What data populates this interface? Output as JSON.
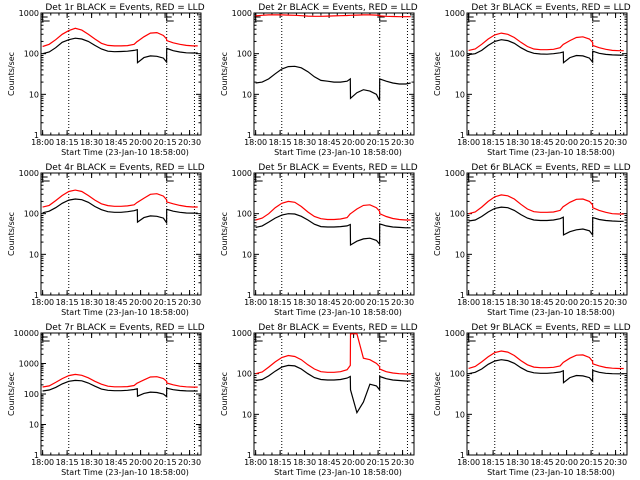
{
  "chart_data": {
    "type": "line",
    "layout": "3x3 grid",
    "common": {
      "xlabel": "Start Time (23-Jan-10 18:58:00)",
      "ylabel": "Counts/sec",
      "x_tick_labels": [
        "18:00",
        "18:15",
        "18:30",
        "18:45",
        "20:00",
        "20:15",
        "20:30"
      ],
      "x_tick_minutes": [
        0,
        15,
        30,
        45,
        60,
        75,
        90
      ],
      "x_range_minutes": [
        -1,
        97
      ],
      "y_scale": "log",
      "dotted_vlines_minutes": [
        16,
        76,
        93
      ],
      "e_markers_minutes": [
        0,
        76
      ],
      "series_colors": {
        "events": "#000000",
        "lld": "#ff0000"
      },
      "x_minutes": [
        0,
        4,
        8,
        12,
        16,
        20,
        24,
        28,
        32,
        36,
        40,
        44,
        48,
        52,
        56,
        58,
        58.1,
        62,
        66,
        70,
        74,
        75.9,
        76,
        80,
        84,
        88,
        92,
        95
      ]
    },
    "panels": [
      {
        "title": "Det 1r BLACK = Events, RED = LLD",
        "ylim": [
          1,
          1000
        ],
        "y_tick_labels": [
          "1",
          "10",
          "100",
          "1000"
        ],
        "series": [
          {
            "name": "Events",
            "color": "#000000",
            "values": [
              100,
              110,
              140,
              190,
              220,
              240,
              230,
              200,
              160,
              130,
              115,
              112,
              113,
              115,
              120,
              125,
              60,
              80,
              88,
              86,
              78,
              62,
              135,
              118,
              110,
              105,
              104,
              104
            ]
          },
          {
            "name": "LLD",
            "color": "#ff0000",
            "values": [
              150,
              170,
              220,
              300,
              370,
              420,
              380,
              300,
              230,
              180,
              160,
              155,
              155,
              158,
              170,
              200,
              200,
              260,
              320,
              330,
              280,
              230,
              210,
              185,
              170,
              160,
              155,
              155
            ]
          }
        ]
      },
      {
        "title": "Det 2r BLACK = Events, RED = LLD",
        "ylim": [
          1,
          1000
        ],
        "y_tick_labels": [
          "1",
          "10",
          "100",
          "1000"
        ],
        "series": [
          {
            "name": "Events",
            "color": "#000000",
            "values": [
              19,
              20,
              24,
              32,
              42,
              48,
              49,
              45,
              36,
              27,
              22,
              21,
              20,
              20,
              21,
              24,
              8,
              11,
              13,
              12,
              10,
              7,
              24,
              21,
              19,
              18,
              18,
              19
            ]
          },
          {
            "name": "LLD",
            "color": "#ff0000",
            "values": [
              850,
              880,
              900,
              900,
              900,
              890,
              880,
              860,
              840,
              830,
              830,
              840,
              850,
              860,
              870,
              880,
              880,
              890,
              900,
              900,
              890,
              870,
              850,
              830,
              820,
              810,
              810,
              810
            ]
          }
        ]
      },
      {
        "title": "Det 3r BLACK = Events, RED = LLD",
        "ylim": [
          1,
          1000
        ],
        "y_tick_labels": [
          "1",
          "10",
          "100",
          "1000"
        ],
        "series": [
          {
            "name": "Events",
            "color": "#000000",
            "values": [
              95,
              100,
              120,
              160,
              200,
              220,
              210,
              180,
              140,
              115,
              102,
              98,
              97,
              100,
              105,
              110,
              60,
              80,
              90,
              88,
              78,
              62,
              115,
              102,
              96,
              93,
              92,
              92
            ]
          },
          {
            "name": "LLD",
            "color": "#ff0000",
            "values": [
              120,
              130,
              170,
              230,
              290,
              320,
              300,
              250,
              190,
              150,
              130,
              125,
              125,
              128,
              140,
              170,
              170,
              210,
              250,
              260,
              230,
              190,
              160,
              140,
              128,
              120,
              118,
              118
            ]
          }
        ]
      },
      {
        "title": "Det 4r BLACK = Events, RED = LLD",
        "ylim": [
          1,
          1000
        ],
        "y_tick_labels": [
          "1",
          "10",
          "100",
          "1000"
        ],
        "series": [
          {
            "name": "Events",
            "color": "#000000",
            "values": [
              105,
              115,
              140,
              180,
              215,
              230,
              220,
              190,
              150,
              125,
              112,
              108,
              108,
              112,
              118,
              125,
              62,
              80,
              88,
              86,
              78,
              60,
              128,
              115,
              108,
              104,
              103,
              103
            ]
          },
          {
            "name": "LLD",
            "color": "#ff0000",
            "values": [
              145,
              160,
              210,
              280,
              350,
              380,
              350,
              280,
              215,
              175,
              158,
              152,
              152,
              155,
              165,
              190,
              190,
              240,
              300,
              310,
              270,
              220,
              195,
              175,
              160,
              150,
              146,
              146
            ]
          }
        ]
      },
      {
        "title": "Det 5r BLACK = Events, RED = LLD",
        "ylim": [
          1,
          1000
        ],
        "y_tick_labels": [
          "1",
          "10",
          "100",
          "1000"
        ],
        "series": [
          {
            "name": "Events",
            "color": "#000000",
            "values": [
              46,
              50,
              62,
              78,
              92,
              100,
              98,
              86,
              70,
              55,
              48,
              47,
              47,
              48,
              50,
              54,
              17,
              21,
              24,
              25,
              22,
              18,
              56,
              50,
              47,
              46,
              45,
              45
            ]
          },
          {
            "name": "LLD",
            "color": "#ff0000",
            "values": [
              70,
              78,
              100,
              140,
              180,
              200,
              190,
              150,
              110,
              85,
              75,
              72,
              72,
              74,
              80,
              100,
              100,
              130,
              160,
              165,
              140,
              115,
              100,
              85,
              76,
              72,
              70,
              70
            ]
          }
        ]
      },
      {
        "title": "Det 6r BLACK = Events, RED = LLD",
        "ylim": [
          1,
          1000
        ],
        "y_tick_labels": [
          "1",
          "10",
          "100",
          "1000"
        ],
        "series": [
          {
            "name": "Events",
            "color": "#000000",
            "values": [
              66,
              70,
              85,
              110,
              135,
              145,
              140,
              120,
              95,
              78,
              70,
              68,
              68,
              70,
              75,
              82,
              30,
              36,
              40,
              42,
              38,
              30,
              80,
              72,
              68,
              66,
              65,
              65
            ]
          },
          {
            "name": "LLD",
            "color": "#ff0000",
            "values": [
              100,
              110,
              145,
              200,
              260,
              290,
              275,
              230,
              170,
              130,
              112,
              108,
              108,
              110,
              120,
              150,
              150,
              190,
              225,
              230,
              200,
              165,
              140,
              120,
              108,
              100,
              98,
              98
            ]
          }
        ]
      },
      {
        "title": "Det 7r BLACK = Events, RED = LLD",
        "ylim": [
          1,
          10000
        ],
        "y_tick_labels": [
          "1",
          "10",
          "100",
          "1000",
          "10000"
        ],
        "series": [
          {
            "name": "Events",
            "color": "#000000",
            "values": [
              125,
              135,
              165,
              215,
              260,
              280,
              270,
              230,
              180,
              145,
              132,
              128,
              128,
              132,
              140,
              148,
              85,
              105,
              115,
              112,
              100,
              82,
              155,
              138,
              130,
              126,
              125,
              125
            ]
          },
          {
            "name": "LLD",
            "color": "#ff0000",
            "values": [
              170,
              185,
              240,
              320,
              400,
              440,
              410,
              340,
              260,
              210,
              180,
              172,
              172,
              175,
              190,
              230,
              230,
              290,
              360,
              370,
              320,
              260,
              230,
              200,
              180,
              172,
              168,
              168
            ]
          }
        ]
      },
      {
        "title": "Det 8r BLACK = Events, RED = LLD",
        "ylim": [
          1,
          1000
        ],
        "y_tick_labels": [
          "1",
          "10",
          "100",
          "1000"
        ],
        "series": [
          {
            "name": "Events",
            "color": "#000000",
            "values": [
              68,
              72,
              88,
              115,
              145,
              160,
              155,
              130,
              100,
              80,
              72,
              70,
              70,
              72,
              78,
              85,
              40,
              11,
              20,
              55,
              50,
              40,
              85,
              75,
              70,
              68,
              66,
              66
            ]
          },
          {
            "name": "LLD",
            "color": "#ff0000",
            "values": [
              100,
              110,
              145,
              195,
              250,
              280,
              265,
              220,
              165,
              130,
              112,
              108,
              108,
              112,
              125,
              160,
              950,
              960,
              240,
              220,
              180,
              150,
              130,
              112,
              104,
              100,
              98,
              98
            ]
          }
        ]
      },
      {
        "title": "Det 9r BLACK = Events, RED = LLD",
        "ylim": [
          1,
          1000
        ],
        "y_tick_labels": [
          "1",
          "10",
          "100",
          "1000"
        ],
        "series": [
          {
            "name": "Events",
            "color": "#000000",
            "values": [
              100,
              108,
              130,
              170,
              205,
              220,
              210,
              180,
              140,
              115,
              105,
              102,
              102,
              105,
              110,
              118,
              60,
              80,
              90,
              88,
              80,
              65,
              120,
              108,
              102,
              100,
              99,
              99
            ]
          },
          {
            "name": "LLD",
            "color": "#ff0000",
            "values": [
              135,
              150,
              195,
              260,
              330,
              360,
              340,
              280,
              210,
              165,
              145,
              140,
              140,
              143,
              155,
              190,
              190,
              240,
              285,
              290,
              250,
              200,
              175,
              155,
              142,
              136,
              134,
              134
            ]
          }
        ]
      }
    ]
  }
}
